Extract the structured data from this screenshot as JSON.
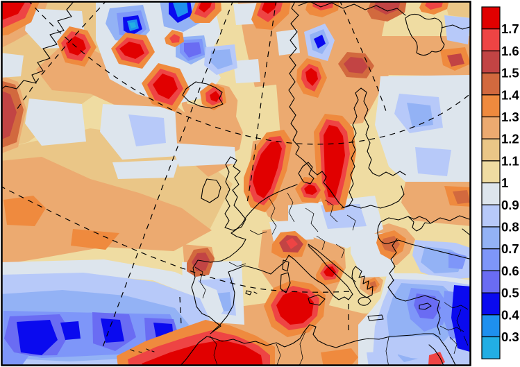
{
  "figure": {
    "type": "filled contour map",
    "region": "Europe and the North Atlantic"
  },
  "colorbar": {
    "orientation": "vertical",
    "position": "right",
    "ticks": [
      "1.7",
      "1.6",
      "1.5",
      "1.4",
      "1.3",
      "1.2",
      "1.1",
      "1",
      "0.9",
      "0.8",
      "0.7",
      "0.6",
      "0.5",
      "0.4",
      "0.3"
    ],
    "cells_top_to_bottom": [
      "#e10000",
      "#ee4444",
      "#c24444",
      "#d2693e",
      "#ef8a3e",
      "#ecaa70",
      "#eac687",
      "#efdca2",
      "#dde5ed",
      "#b7c9f9",
      "#93b2f5",
      "#7e96f9",
      "#6a6cf3",
      "#0a0aef",
      "#1e90ef",
      "#22aee4"
    ]
  },
  "chart_data": {
    "type": "heatmap",
    "subtype": "filled-contour geographic map with coastlines and dashed graticule",
    "region": "Europe / North Atlantic / Mediterranean / North Africa",
    "levels": [
      0.3,
      0.4,
      0.5,
      0.6,
      0.7,
      0.8,
      0.9,
      1,
      1.1,
      1.2,
      1.3,
      1.4,
      1.5,
      1.6,
      1.7
    ],
    "palette_high_to_low": [
      "#e10000",
      "#ee4444",
      "#c24444",
      "#d2693e",
      "#ef8a3e",
      "#ecaa70",
      "#eac687",
      "#efdca2",
      "#dde5ed",
      "#b7c9f9",
      "#93b2f5",
      "#7e96f9",
      "#6a6cf3",
      "#0a0aef",
      "#1e90ef",
      "#22aee4"
    ],
    "legend_position": "right",
    "grid": "dashed meridians and parallels",
    "notable_features": [
      {
        "location": "Norwegian Sea and Scandinavia",
        "approx_value": "1.5 to >1.7"
      },
      {
        "location": "North Sea east of Great Britain",
        "approx_value": "1.5 to >1.7"
      },
      {
        "location": "Atlantic south of Iceland, cellular pattern",
        "approx_value": "alternating >1.7 maxima and 0.3-0.6 minima"
      },
      {
        "location": "Subtropical Atlantic, southwest corner",
        "approx_value": "0.4-0.7 with 0.4-0.5 cores"
      },
      {
        "location": "Northwest African coast",
        "approx_value": ">1.7"
      },
      {
        "location": "Central Mediterranean, Tunisia / Sicily and Italy",
        "approx_value": "1.4 to >1.7"
      },
      {
        "location": "Eastern Mediterranean and Levant",
        "approx_value": "0.3-0.7"
      },
      {
        "location": "Iberian Peninsula interior",
        "approx_value": "0.7-0.9"
      },
      {
        "location": "Alps and northwest Black Sea",
        "approx_value": "1.4-1.6"
      },
      {
        "location": "Mid-latitude background",
        "approx_value": "1.0-1.3"
      }
    ]
  }
}
